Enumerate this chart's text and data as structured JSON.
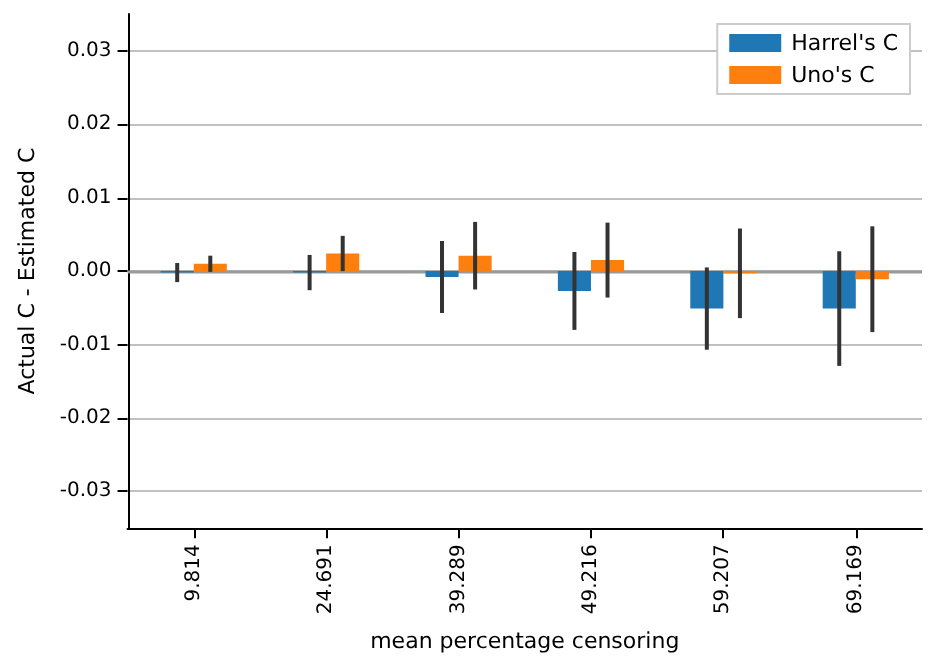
{
  "chart_data": {
    "type": "bar",
    "xlabel": "mean percentage censoring",
    "ylabel": "Actual C - Estimated C",
    "categories": [
      "9.814",
      "24.691",
      "39.289",
      "49.216",
      "59.207",
      "69.169"
    ],
    "series": [
      {
        "name": "Harrel's C",
        "color": "#1f77b4",
        "values": [
          -0.0002,
          -0.0002,
          -0.0008,
          -0.0027,
          -0.0051,
          -0.0051
        ],
        "errors": [
          0.0013,
          0.0024,
          0.0049,
          0.0053,
          0.0056,
          0.0078
        ]
      },
      {
        "name": "Uno's C",
        "color": "#ff7f0e",
        "values": [
          0.001,
          0.0024,
          0.0021,
          0.0015,
          -0.0003,
          -0.0011
        ],
        "errors": [
          0.0011,
          0.0024,
          0.0046,
          0.0051,
          0.0061,
          0.0072
        ]
      }
    ],
    "ylim": [
      -0.035,
      0.035
    ],
    "yticks": [
      {
        "value": -0.03,
        "label": "-0.03"
      },
      {
        "value": -0.02,
        "label": "-0.02"
      },
      {
        "value": -0.01,
        "label": "-0.01"
      },
      {
        "value": 0,
        "label": "0.00"
      },
      {
        "value": 0.01,
        "label": "0.01"
      },
      {
        "value": 0.02,
        "label": "0.02"
      },
      {
        "value": 0.03,
        "label": "0.03"
      }
    ],
    "ref_lines": [
      {
        "axis": "y",
        "value": 0,
        "color": "#999999"
      }
    ],
    "grid": "y",
    "legend": "top right"
  }
}
